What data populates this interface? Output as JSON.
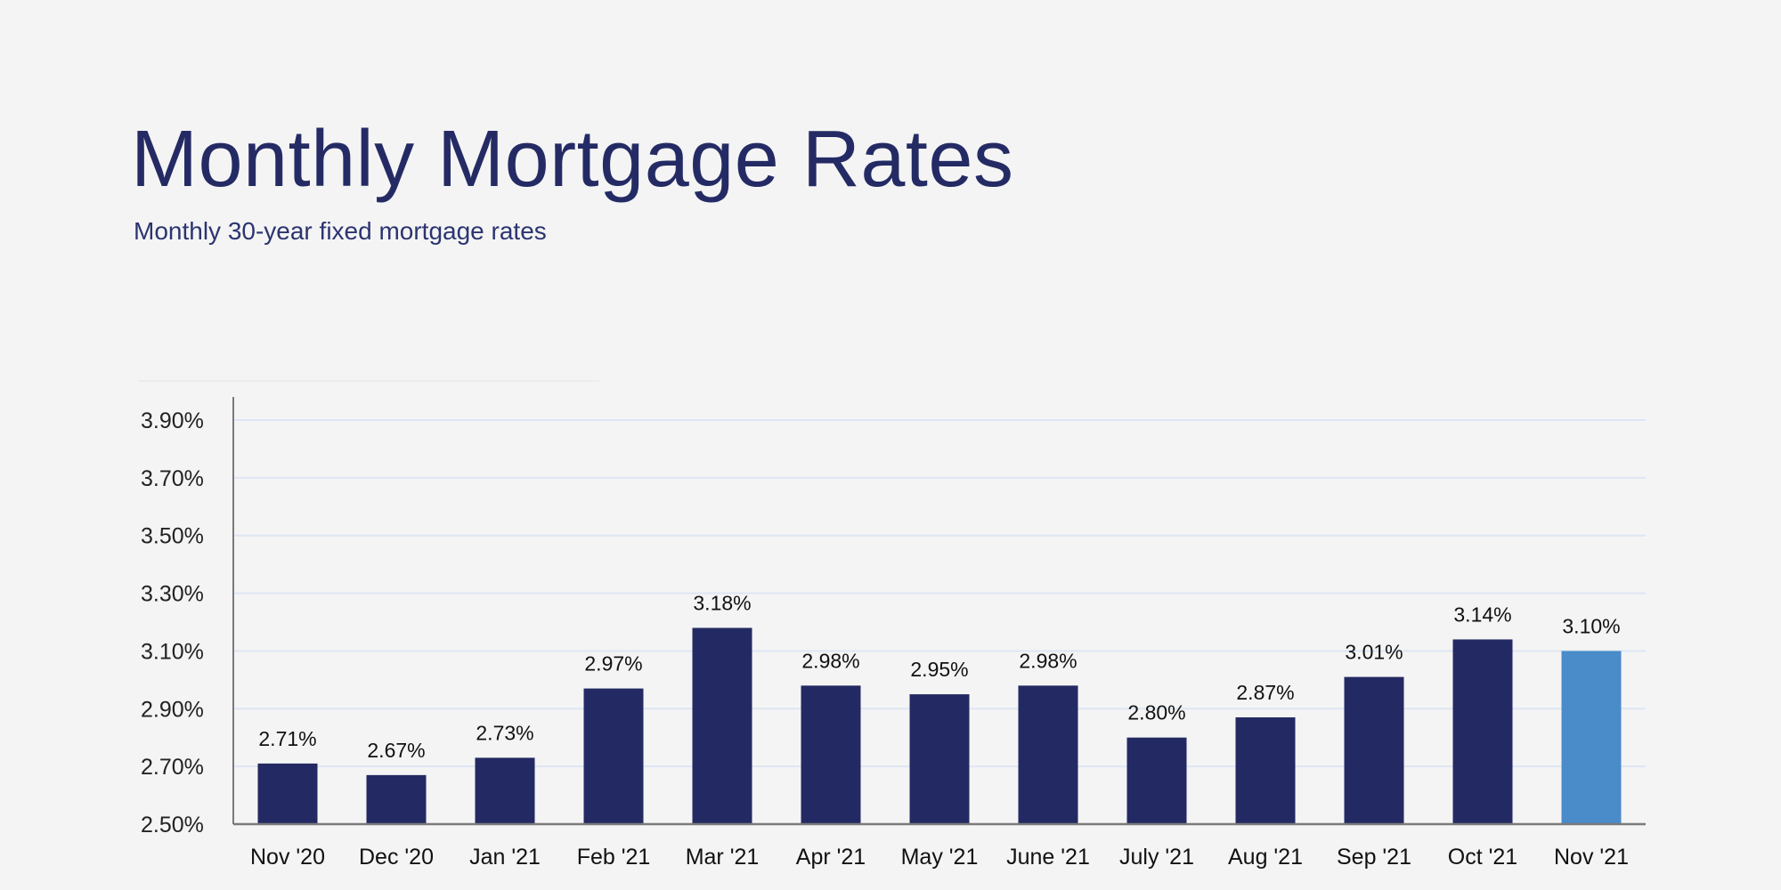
{
  "chart_data": {
    "type": "bar",
    "title": "Monthly Mortgage Rates",
    "subtitle": "Monthly 30-year fixed mortgage rates",
    "xlabel": "",
    "ylabel": "",
    "categories": [
      "Nov '20",
      "Dec '20",
      "Jan '21",
      "Feb '21",
      "Mar '21",
      "Apr '21",
      "May '21",
      "June '21",
      "July '21",
      "Aug '21",
      "Sep '21",
      "Oct '21",
      "Nov '21"
    ],
    "values": [
      2.71,
      2.67,
      2.73,
      2.97,
      3.18,
      2.98,
      2.95,
      2.98,
      2.8,
      2.87,
      3.01,
      3.14,
      3.1
    ],
    "data_labels": [
      "2.71%",
      "2.67%",
      "2.73%",
      "2.97%",
      "3.18%",
      "2.98%",
      "2.95%",
      "2.98%",
      "2.80%",
      "2.87%",
      "3.01%",
      "3.14%",
      "3.10%"
    ],
    "ylim": [
      2.5,
      3.9
    ],
    "yticks": [
      "2.50%",
      "2.70%",
      "2.90%",
      "3.10%",
      "3.30%",
      "3.50%",
      "3.70%",
      "3.90%"
    ],
    "ytick_values": [
      2.5,
      2.7,
      2.9,
      3.1,
      3.3,
      3.5,
      3.7,
      3.9
    ],
    "grid": true,
    "colors": {
      "bar": "#232a63",
      "highlight": "#4a8bc9",
      "grid": "#dde6f3",
      "axis": "#7a7a7a"
    },
    "highlight_index": 12
  }
}
